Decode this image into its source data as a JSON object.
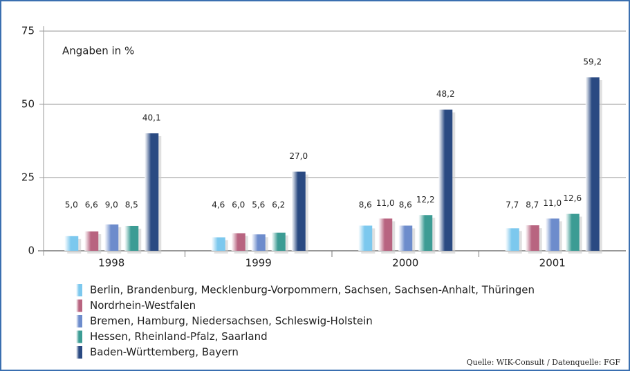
{
  "chart_data": {
    "type": "bar",
    "annotation": "Angaben in %",
    "source": "Quelle: WIK-Consult / Datenquelle: FGF",
    "categories": [
      "1998",
      "1999",
      "2000",
      "2001"
    ],
    "ylim": [
      0,
      75
    ],
    "yticks": [
      0,
      25,
      50,
      75
    ],
    "grid": true,
    "series": [
      {
        "name": "Berlin, Brandenburg, Mecklenburg-Vorpommern, Sachsen, Sachsen-Anhalt, Thüringen",
        "color": "#7cc8ee",
        "values": [
          5.0,
          4.6,
          8.6,
          7.7
        ],
        "value_labels": [
          "5,0",
          "4,6",
          "8,6",
          "7,7"
        ]
      },
      {
        "name": "Nordrhein-Westfalen",
        "color": "#b86480",
        "values": [
          6.6,
          6.0,
          11.0,
          8.7
        ],
        "value_labels": [
          "6,6",
          "6,0",
          "11,0",
          "8,7"
        ]
      },
      {
        "name": "Bremen, Hamburg, Niedersachsen, Schleswig-Holstein",
        "color": "#6d8ccc",
        "values": [
          9.0,
          5.6,
          8.6,
          11.0
        ],
        "value_labels": [
          "9,0",
          "5,6",
          "8,6",
          "11,0"
        ]
      },
      {
        "name": "Hessen, Rheinland-Pfalz, Saarland",
        "color": "#3c9c94",
        "values": [
          8.5,
          6.2,
          12.2,
          12.6
        ],
        "value_labels": [
          "8,5",
          "6,2",
          "12,2",
          "12,6"
        ]
      },
      {
        "name": "Baden-Württemberg, Bayern",
        "color": "#2a4a82",
        "values": [
          40.1,
          27.0,
          48.2,
          59.2
        ],
        "value_labels": [
          "40,1",
          "27,0",
          "48,2",
          "59,2"
        ]
      }
    ]
  }
}
